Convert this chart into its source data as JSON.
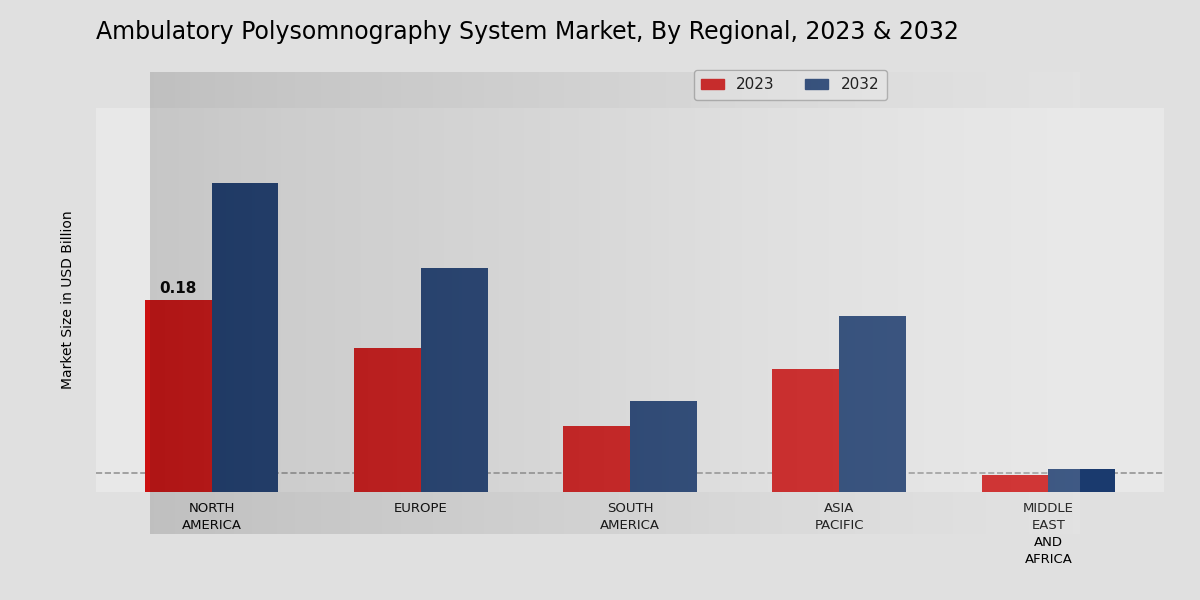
{
  "title": "Ambulatory Polysomnography System Market, By Regional, 2023 & 2032",
  "ylabel": "Market Size in USD Billion",
  "categories": [
    "NORTH\nAMERICA",
    "EUROPE",
    "SOUTH\nAMERICA",
    "ASIA\nPACIFIC",
    "MIDDLE\nEAST\nAND\nAFRICA"
  ],
  "values_2023": [
    0.18,
    0.135,
    0.062,
    0.115,
    0.016
  ],
  "values_2032": [
    0.29,
    0.21,
    0.085,
    0.165,
    0.022
  ],
  "color_2023": "#cc1111",
  "color_2032": "#1a3a6e",
  "annotation_value": "0.18",
  "annotation_bar_index": 0,
  "dashed_line_y": 0.018,
  "bar_width": 0.32,
  "legend_labels": [
    "2023",
    "2032"
  ],
  "ylim": [
    0,
    0.36
  ],
  "bg_left": "#c8c8cc",
  "bg_right": "#f0f0f0",
  "title_fontsize": 17,
  "label_fontsize": 10,
  "tick_fontsize": 9.5,
  "legend_fontsize": 11,
  "annotation_fontsize": 11
}
